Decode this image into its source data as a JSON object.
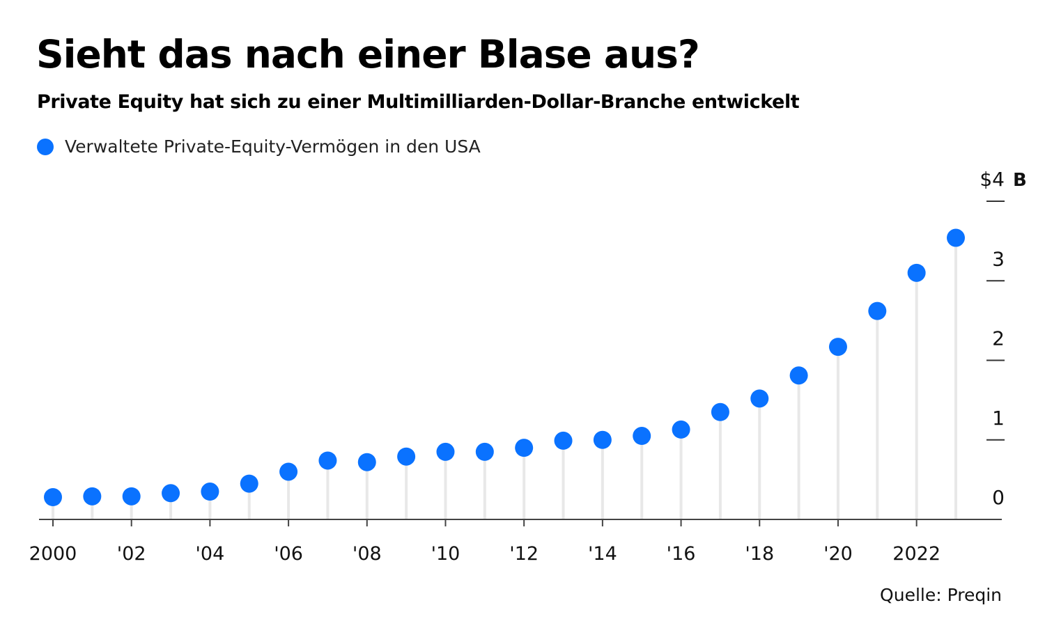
{
  "chart_data": {
    "type": "scatter",
    "title": "Sieht das nach einer Blase aus?",
    "subtitle": "Private Equity hat sich zu einer Multimilliarden-Dollar-Branche entwickelt",
    "legend": {
      "placement": "top-left",
      "entries": [
        {
          "name": "Verwaltete Private-Equity-Vermögen in den USA",
          "color": "#0a72ff"
        }
      ]
    },
    "x": [
      2000,
      2001,
      2002,
      2003,
      2004,
      2005,
      2006,
      2007,
      2008,
      2009,
      2010,
      2011,
      2012,
      2013,
      2014,
      2015,
      2016,
      2017,
      2018,
      2019,
      2020,
      2021,
      2022,
      2023
    ],
    "series": [
      {
        "name": "Verwaltete Private-Equity-Vermögen in den USA",
        "color": "#0a72ff",
        "values": [
          0.28,
          0.29,
          0.29,
          0.33,
          0.35,
          0.45,
          0.6,
          0.74,
          0.72,
          0.79,
          0.85,
          0.85,
          0.9,
          0.99,
          1.0,
          1.05,
          1.13,
          1.35,
          1.52,
          1.81,
          2.17,
          2.62,
          3.1,
          3.54
        ]
      }
    ],
    "x_tick_values": [
      2000,
      2002,
      2004,
      2006,
      2008,
      2010,
      2012,
      2014,
      2016,
      2018,
      2020,
      2022
    ],
    "x_tick_labels": [
      "2000",
      "'02",
      "'04",
      "'06",
      "'08",
      "'10",
      "'12",
      "'14",
      "'16",
      "'18",
      "'20",
      "2022"
    ],
    "y_tick_values": [
      0,
      1,
      2,
      3,
      4
    ],
    "y_tick_labels": [
      "0",
      "1",
      "2",
      "3",
      "$4"
    ],
    "y_unit_label": "B",
    "xlim": [
      2000,
      2023
    ],
    "ylim": [
      0,
      4
    ],
    "grid": false,
    "y_axis_side": "right",
    "marker_color": "#0a72ff",
    "stem_color": "#e8e8e8"
  },
  "source": "Quelle: Preqin"
}
